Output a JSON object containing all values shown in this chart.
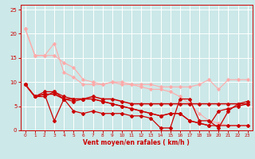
{
  "bg_color": "#cce8e8",
  "grid_color": "#ffffff",
  "xlabel": "Vent moyen/en rafales ( km/h )",
  "xlabel_color": "#cc0000",
  "tick_color": "#cc0000",
  "xlim": [
    -0.5,
    23.5
  ],
  "ylim": [
    0,
    26
  ],
  "yticks": [
    0,
    5,
    10,
    15,
    20,
    25
  ],
  "xticks": [
    0,
    1,
    2,
    3,
    4,
    5,
    6,
    7,
    8,
    9,
    10,
    11,
    12,
    13,
    14,
    15,
    16,
    17,
    18,
    19,
    20,
    21,
    22,
    23
  ],
  "series": [
    {
      "x": [
        0,
        1,
        2,
        3,
        4,
        5,
        6,
        7,
        8,
        9,
        10,
        11,
        12,
        13,
        14,
        15,
        16,
        17,
        18,
        19,
        20,
        21,
        22,
        23
      ],
      "y": [
        21.0,
        15.5,
        15.5,
        18.0,
        12.0,
        11.0,
        9.5,
        9.5,
        9.5,
        10.0,
        10.0,
        9.5,
        9.5,
        9.5,
        9.0,
        9.0,
        9.0,
        9.0,
        9.5,
        10.5,
        8.5,
        10.5,
        10.5,
        10.5
      ],
      "color": "#ffaaaa",
      "lw": 0.8,
      "marker": "D",
      "ms": 1.8
    },
    {
      "x": [
        0,
        1,
        2,
        3,
        4,
        5,
        6,
        7,
        8,
        9,
        10,
        11,
        12,
        13,
        14,
        15,
        16,
        17,
        18,
        19,
        20,
        21,
        22,
        23
      ],
      "y": [
        21.0,
        15.5,
        15.5,
        15.5,
        14.0,
        13.0,
        10.5,
        10.0,
        9.5,
        10.0,
        9.5,
        9.5,
        9.0,
        8.5,
        8.5,
        8.0,
        7.0,
        5.5,
        3.5,
        2.0,
        1.5,
        1.0,
        1.0,
        1.0
      ],
      "color": "#ffaaaa",
      "lw": 0.8,
      "marker": "D",
      "ms": 1.8
    },
    {
      "x": [
        0,
        1,
        2,
        3,
        4,
        5,
        6,
        7,
        8,
        9,
        10,
        11,
        12,
        13,
        14,
        15,
        16,
        17,
        18,
        19,
        20,
        21,
        22,
        23
      ],
      "y": [
        9.5,
        7.0,
        7.0,
        8.0,
        7.0,
        6.5,
        6.5,
        6.5,
        6.0,
        5.5,
        5.0,
        4.5,
        4.0,
        3.5,
        3.0,
        3.5,
        3.5,
        2.0,
        1.5,
        1.0,
        1.0,
        1.0,
        1.0,
        1.0
      ],
      "color": "#cc0000",
      "lw": 0.9,
      "marker": "D",
      "ms": 2.0
    },
    {
      "x": [
        0,
        1,
        2,
        3,
        4,
        5,
        6,
        7,
        8,
        9,
        10,
        11,
        12,
        13,
        14,
        15,
        16,
        17,
        18,
        19,
        20,
        21,
        22,
        23
      ],
      "y": [
        9.5,
        7.0,
        8.0,
        8.0,
        6.5,
        6.0,
        6.5,
        6.5,
        6.0,
        5.5,
        5.0,
        4.5,
        4.0,
        3.5,
        3.0,
        3.5,
        3.5,
        2.0,
        1.5,
        1.0,
        4.0,
        4.5,
        5.0,
        5.5
      ],
      "color": "#cc0000",
      "lw": 0.9,
      "marker": "D",
      "ms": 2.0
    },
    {
      "x": [
        0,
        1,
        2,
        3,
        4,
        5,
        6,
        7,
        8,
        9,
        10,
        11,
        12,
        13,
        14,
        15,
        16,
        17,
        18,
        19,
        20,
        21,
        22,
        23
      ],
      "y": [
        9.5,
        7.0,
        7.5,
        2.0,
        6.5,
        4.0,
        3.5,
        4.0,
        3.5,
        3.5,
        3.5,
        3.0,
        3.0,
        2.5,
        0.5,
        0.5,
        6.5,
        6.5,
        2.0,
        2.0,
        0.5,
        4.0,
        5.5,
        6.0
      ],
      "color": "#cc0000",
      "lw": 0.9,
      "marker": "D",
      "ms": 2.0
    },
    {
      "x": [
        0,
        1,
        2,
        3,
        4,
        5,
        6,
        7,
        8,
        9,
        10,
        11,
        12,
        13,
        14,
        15,
        16,
        17,
        18,
        19,
        20,
        21,
        22,
        23
      ],
      "y": [
        9.5,
        7.0,
        7.5,
        7.5,
        6.5,
        6.5,
        6.5,
        7.0,
        6.5,
        6.5,
        6.0,
        5.5,
        5.5,
        5.5,
        5.5,
        5.5,
        5.5,
        5.5,
        5.5,
        5.5,
        5.5,
        5.5,
        5.5,
        5.5
      ],
      "color": "#cc0000",
      "lw": 1.1,
      "marker": "D",
      "ms": 2.0
    }
  ]
}
